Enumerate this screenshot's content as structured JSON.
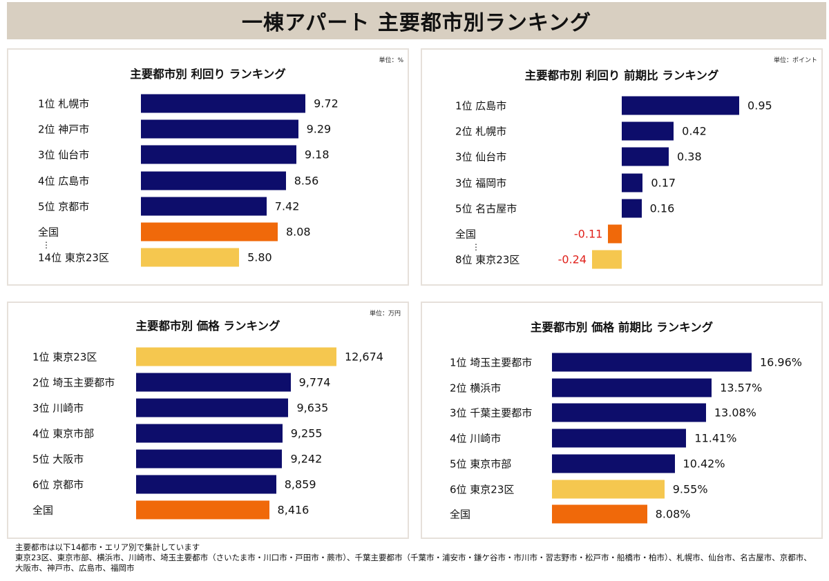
{
  "title": "一棟アパート 主要都市別ランキング",
  "colors": {
    "city": "#0d0d6b",
    "national": "#f0690a",
    "tokyo23": "#f5c74f",
    "negative": "#e0201a"
  },
  "chart_data": [
    {
      "type": "bar",
      "orientation": "horizontal",
      "title": "主要都市別 利回り ランキング",
      "unit": "単位：%",
      "rows": [
        {
          "label": "1位 札幌市",
          "value": 9.72,
          "display": "9.72",
          "kind": "city"
        },
        {
          "label": "2位 神戸市",
          "value": 9.29,
          "display": "9.29",
          "kind": "city"
        },
        {
          "label": "3位 仙台市",
          "value": 9.18,
          "display": "9.18",
          "kind": "city"
        },
        {
          "label": "4位 広島市",
          "value": 8.56,
          "display": "8.56",
          "kind": "city"
        },
        {
          "label": "5位 京都市",
          "value": 7.42,
          "display": "7.42",
          "kind": "city"
        },
        {
          "label": "全国",
          "value": 8.08,
          "display": "8.08",
          "kind": "national"
        },
        {
          "label": "14位 東京23区",
          "value": 5.8,
          "display": "5.80",
          "kind": "tokyo23"
        }
      ],
      "ellipsis": "⋮"
    },
    {
      "type": "bar",
      "orientation": "horizontal",
      "title": "主要都市別 利回り 前期比 ランキング",
      "unit": "単位：ポイント",
      "rows": [
        {
          "label": "1位 広島市",
          "value": 0.95,
          "display": "0.95",
          "kind": "city"
        },
        {
          "label": "2位 札幌市",
          "value": 0.42,
          "display": "0.42",
          "kind": "city"
        },
        {
          "label": "3位 仙台市",
          "value": 0.38,
          "display": "0.38",
          "kind": "city"
        },
        {
          "label": "3位 福岡市",
          "value": 0.17,
          "display": "0.17",
          "kind": "city"
        },
        {
          "label": "5位  名古屋市",
          "value": 0.16,
          "display": "0.16",
          "kind": "city"
        },
        {
          "label": "全国",
          "value": -0.11,
          "display": "-0.11",
          "kind": "national"
        },
        {
          "label": "8位 東京23区",
          "value": -0.24,
          "display": "-0.24",
          "kind": "tokyo23"
        }
      ],
      "ellipsis": "⋮"
    },
    {
      "type": "bar",
      "orientation": "horizontal",
      "title": "主要都市別 価格 ランキング",
      "unit": "単位：万円",
      "rows": [
        {
          "label": "1位 東京23区",
          "value": 12674,
          "display": "12,674",
          "kind": "tokyo23"
        },
        {
          "label": "2位 埼玉主要都市",
          "value": 9774,
          "display": "9,774",
          "kind": "city"
        },
        {
          "label": "3位 川崎市",
          "value": 9635,
          "display": "9,635",
          "kind": "city"
        },
        {
          "label": "4位 東京市部",
          "value": 9255,
          "display": "9,255",
          "kind": "city"
        },
        {
          "label": "5位 大阪市",
          "value": 9242,
          "display": "9,242",
          "kind": "city"
        },
        {
          "label": "6位 京都市",
          "value": 8859,
          "display": "8,859",
          "kind": "city"
        },
        {
          "label": "全国",
          "value": 8416,
          "display": "8,416",
          "kind": "national"
        }
      ]
    },
    {
      "type": "bar",
      "orientation": "horizontal",
      "title": "主要都市別 価格 前期比 ランキング",
      "rows": [
        {
          "label": "1位 埼玉主要都市",
          "value": 16.96,
          "display": "16.96%",
          "kind": "city"
        },
        {
          "label": "2位 横浜市",
          "value": 13.57,
          "display": "13.57%",
          "kind": "city"
        },
        {
          "label": "3位 千葉主要都市",
          "value": 13.08,
          "display": "13.08%",
          "kind": "city"
        },
        {
          "label": "4位 川崎市",
          "value": 11.41,
          "display": "11.41%",
          "kind": "city"
        },
        {
          "label": "5位 東京市部",
          "value": 10.42,
          "display": "10.42%",
          "kind": "city"
        },
        {
          "label": "6位 東京23区",
          "value": 9.55,
          "display": "9.55%",
          "kind": "tokyo23"
        },
        {
          "label": "全国",
          "value": 8.08,
          "display": "8.08%",
          "kind": "national"
        }
      ]
    }
  ],
  "footer": {
    "line1": "主要都市は以下14都市・エリア別で集計しています",
    "line2": "東京23区、東京市部、横浜市、川崎市、埼玉主要都市（さいたま市・川口市・戸田市・蕨市）、千葉主要都市（千葉市・浦安市・鎌ケ谷市・市川市・習志野市・松戸市・船橋市・柏市）、札幌市、仙台市、名古屋市、京都市、大阪市、神戸市、広島市、福岡市"
  }
}
